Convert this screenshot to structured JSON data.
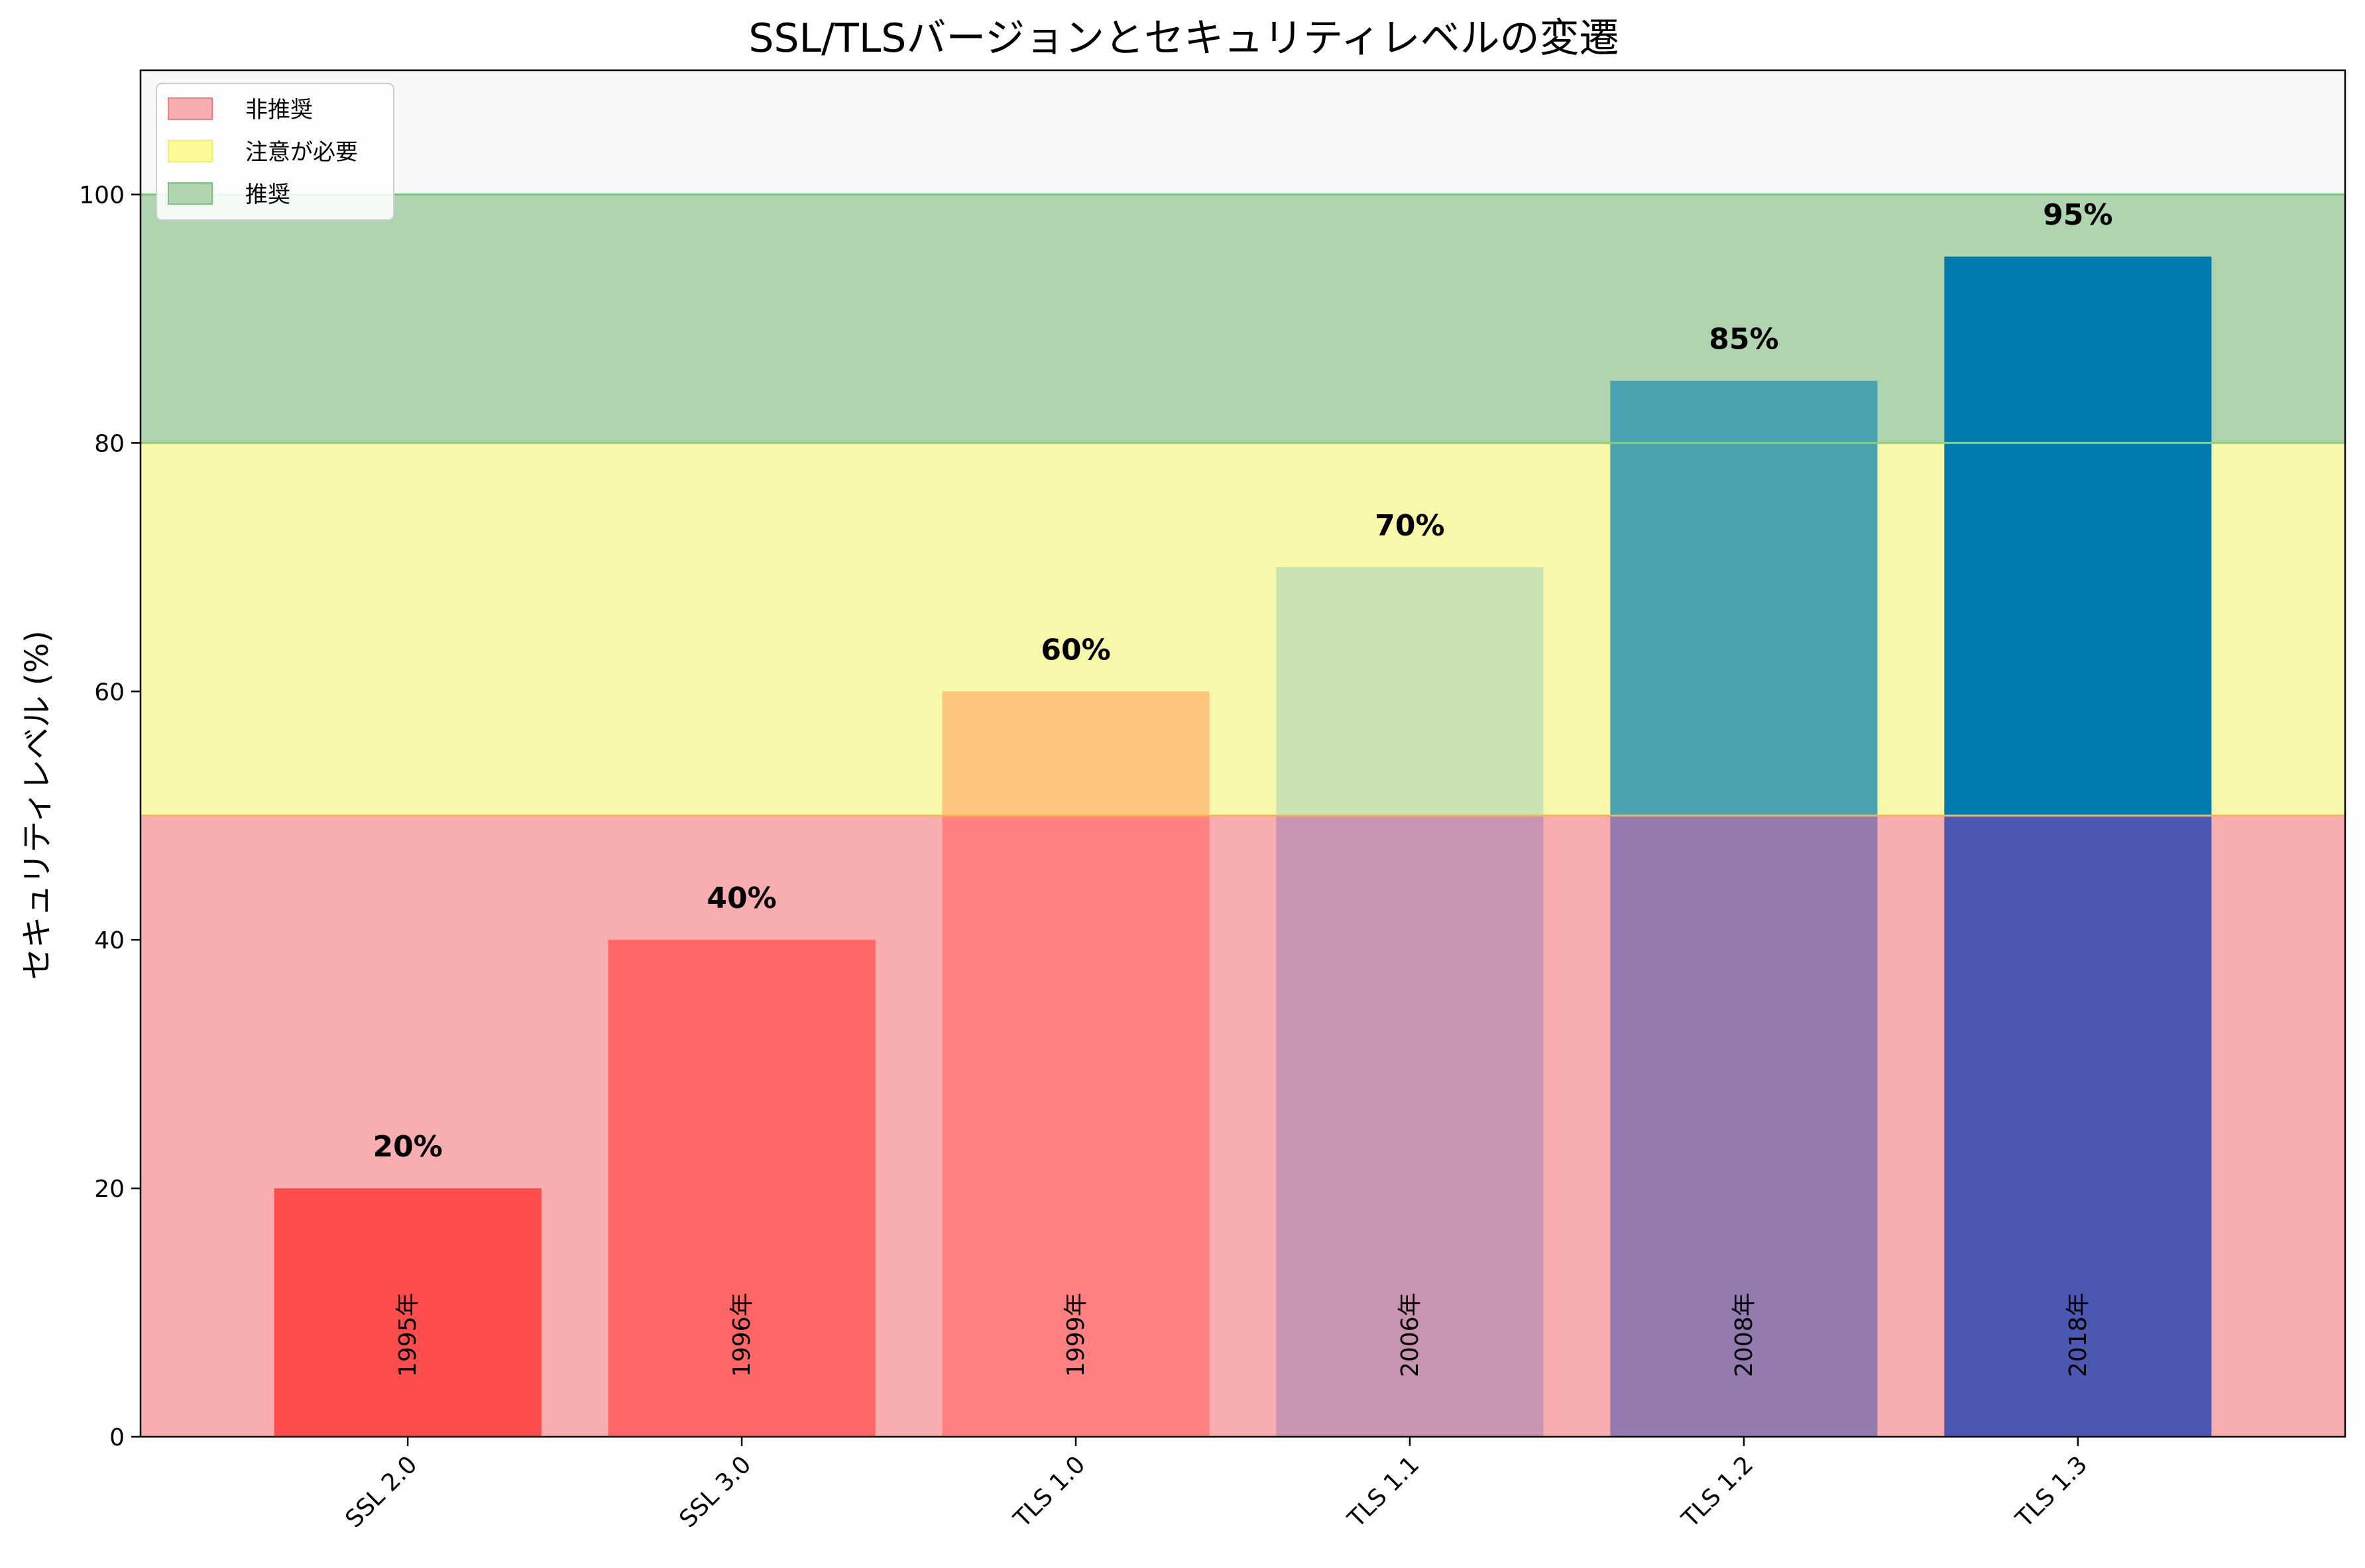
{
  "chart_data": {
    "type": "bar",
    "title": "SSL/TLSバージョンとセキュリティレベルの変遷",
    "xlabel": "",
    "ylabel": "セキュリティレベル (%)",
    "ylim": [
      0,
      110
    ],
    "yticks": [
      0,
      20,
      40,
      60,
      80,
      100
    ],
    "categories": [
      "SSL 2.0",
      "SSL 3.0",
      "TLS 1.0",
      "TLS 1.1",
      "TLS 1.2",
      "TLS 1.3"
    ],
    "values": [
      20,
      40,
      60,
      70,
      85,
      95
    ],
    "value_labels": [
      "20%",
      "40%",
      "60%",
      "70%",
      "85%",
      "95%"
    ],
    "years": [
      "1995年",
      "1996年",
      "1999年",
      "2006年",
      "2008年",
      "2018年"
    ],
    "bar_colors": [
      "#ff4d4d",
      "#ff6666",
      "#ff8080",
      "#c994b2",
      "#937bb0",
      "#4b57b0"
    ],
    "bar_top_colors": [
      "#ff4d4d",
      "#ff6666",
      "#fcc67f",
      "#cbe3b3",
      "#4aa2b0",
      "#007bb0"
    ],
    "bands": [
      {
        "name": "非推奨",
        "from": 0,
        "to": 50,
        "color": "#f8aeb0"
      },
      {
        "name": "注意が必要",
        "from": 50,
        "to": 80,
        "color": "#f8f8aa"
      },
      {
        "name": "推奨",
        "from": 80,
        "to": 100,
        "color": "#b0d4b0"
      }
    ],
    "band_edge_colors": [
      "#f5b54a",
      "#8fd16a"
    ],
    "background_color": "#f7f8fa",
    "legend": {
      "placement": "top-left",
      "entries": [
        {
          "label": "非推奨",
          "color": "#f8aeb0",
          "edge": "#f07b80"
        },
        {
          "label": "注意が必要",
          "color": "#fafa99",
          "edge": "#f0f070"
        },
        {
          "label": "推奨",
          "color": "#b0d4b0",
          "edge": "#7fbf7f"
        }
      ]
    },
    "grid": false
  }
}
